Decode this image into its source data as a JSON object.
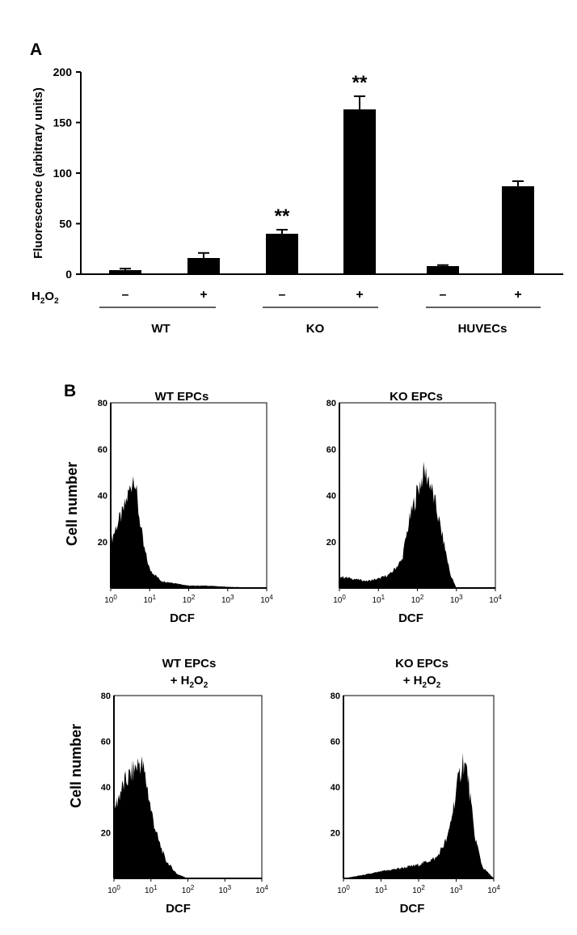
{
  "panel_a": {
    "label": "A",
    "treatment_label": "H",
    "group_labels": [
      "WT",
      "KO",
      "HUVECs"
    ],
    "treatment_signs": [
      "–",
      "+",
      "–",
      "+",
      "–",
      "+"
    ]
  },
  "panel_b": {
    "label": "B",
    "ylabel": "Cell number",
    "xlabel": "DCF",
    "y_ticks": [
      "20",
      "40",
      "60",
      "80"
    ],
    "x_ticks": [
      {
        "base": "10",
        "exp": "0"
      },
      {
        "base": "10",
        "exp": "1"
      },
      {
        "base": "10",
        "exp": "2"
      },
      {
        "base": "10",
        "exp": "3"
      },
      {
        "base": "10",
        "exp": "4"
      }
    ],
    "panels": [
      {
        "title_line1": "WT EPCs",
        "title_line2": ""
      },
      {
        "title_line1": "KO EPCs",
        "title_line2": ""
      },
      {
        "title_line1": "WT EPCs",
        "title_line2": "+ H"
      },
      {
        "title_line1": "KO EPCs",
        "title_line2": "+ H"
      }
    ]
  },
  "chart_data": [
    {
      "type": "bar",
      "categories": [
        "WT –",
        "WT +",
        "KO –",
        "KO +",
        "HUVECs –",
        "HUVECs +"
      ],
      "values": [
        4,
        16,
        40,
        163,
        8,
        87
      ],
      "errors": [
        1.5,
        5,
        4,
        13,
        1,
        5
      ],
      "annotations": [
        "",
        "",
        "**",
        "**",
        "",
        ""
      ],
      "ylabel": "Fluorescence (arbitrary units)",
      "ylim": [
        0,
        200
      ],
      "y_ticks": [
        0,
        50,
        100,
        150,
        200
      ]
    },
    {
      "type": "area",
      "title": "WT EPCs",
      "xlabel": "DCF",
      "ylabel": "Cell number",
      "x_scale": "log",
      "xlim": [
        1,
        10000
      ],
      "ylim": [
        0,
        80
      ],
      "x": [
        1,
        1.5,
        2,
        3,
        3.5,
        4,
        5,
        7,
        10,
        20,
        50,
        100,
        300,
        1000,
        10000
      ],
      "y": [
        20,
        28,
        32,
        42,
        46,
        50,
        35,
        18,
        8,
        3,
        2,
        1,
        1,
        0.5,
        0
      ]
    },
    {
      "type": "area",
      "title": "KO EPCs",
      "xlabel": "DCF",
      "ylabel": "Cell number",
      "x_scale": "log",
      "xlim": [
        1,
        10000
      ],
      "ylim": [
        0,
        80
      ],
      "x": [
        1,
        5,
        10,
        20,
        40,
        60,
        100,
        150,
        200,
        300,
        500,
        700,
        1000,
        10000
      ],
      "y": [
        5,
        3,
        4,
        6,
        12,
        28,
        42,
        50,
        47,
        35,
        18,
        6,
        0,
        0
      ]
    },
    {
      "type": "area",
      "title": "WT EPCs + H2O2",
      "xlabel": "DCF",
      "ylabel": "Cell number",
      "x_scale": "log",
      "xlim": [
        1,
        10000
      ],
      "ylim": [
        0,
        80
      ],
      "x": [
        1,
        1.5,
        2,
        3,
        4,
        5,
        6,
        8,
        10,
        15,
        25,
        50,
        100,
        10000
      ],
      "y": [
        30,
        38,
        42,
        46,
        49,
        51,
        49,
        40,
        30,
        18,
        8,
        2,
        0,
        0
      ]
    },
    {
      "type": "area",
      "title": "KO EPCs + H2O2",
      "xlabel": "DCF",
      "ylabel": "Cell number",
      "x_scale": "log",
      "xlim": [
        1,
        10000
      ],
      "ylim": [
        0,
        80
      ],
      "x": [
        1,
        5,
        10,
        50,
        100,
        300,
        600,
        1000,
        1500,
        2000,
        3000,
        5000,
        10000
      ],
      "y": [
        0,
        2,
        3,
        5,
        6,
        9,
        18,
        38,
        52,
        46,
        20,
        5,
        0
      ]
    }
  ]
}
